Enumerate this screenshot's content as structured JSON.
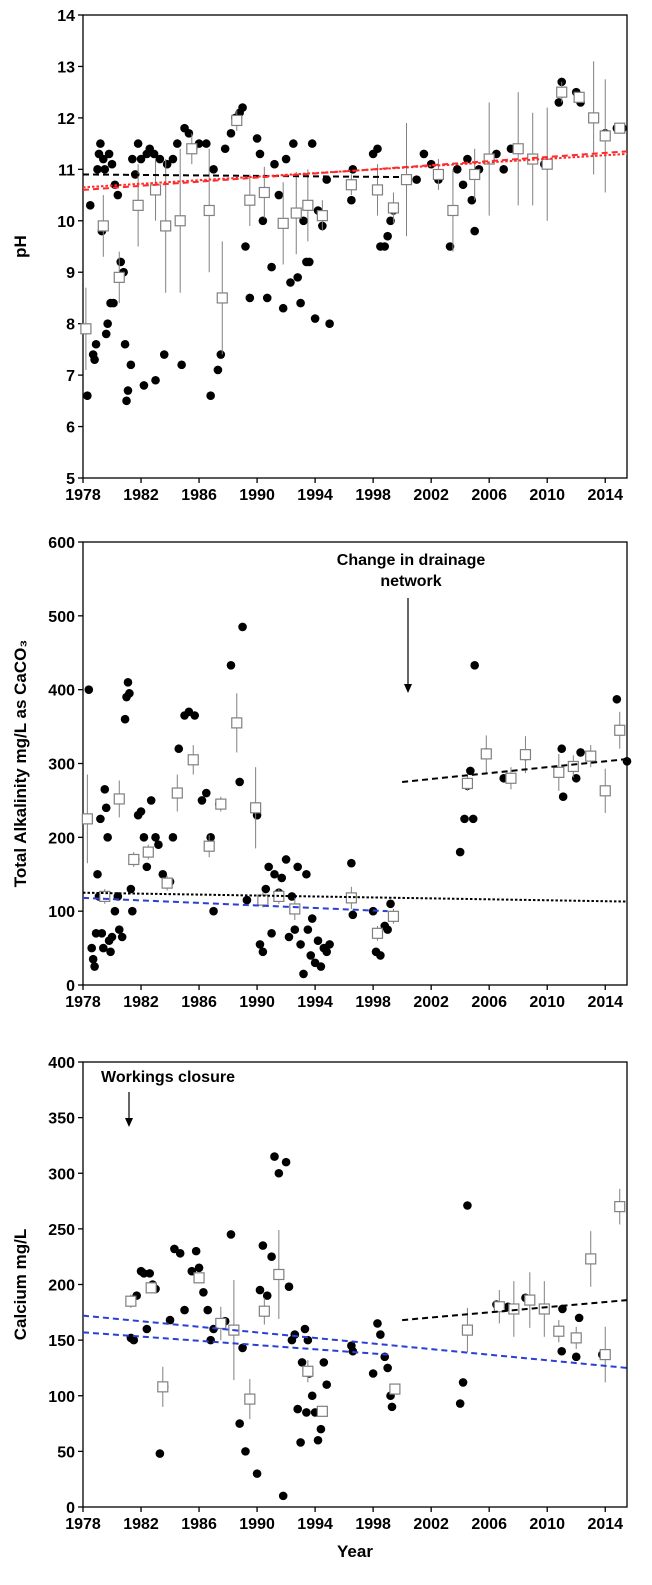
{
  "chart_data": [
    {
      "type": "scatter",
      "ylabel": "pH",
      "xlim": [
        1978,
        2015.5
      ],
      "xticks": [
        1978,
        1982,
        1986,
        1990,
        1994,
        1998,
        2002,
        2006,
        2010,
        2014
      ],
      "ylim": [
        5,
        14
      ],
      "yticks": [
        5,
        6,
        7,
        8,
        9,
        10,
        11,
        12,
        13,
        14
      ],
      "series": [
        {
          "marker": "circle",
          "color": "#000000",
          "x": [
            1978.3,
            1978.5,
            1978.7,
            1978.8,
            1978.9,
            1979.0,
            1979.1,
            1979.2,
            1979.3,
            1979.4,
            1979.5,
            1979.6,
            1979.7,
            1979.8,
            1979.9,
            1980.0,
            1980.1,
            1980.2,
            1980.4,
            1980.6,
            1980.8,
            1980.9,
            1981.0,
            1981.1,
            1981.3,
            1981.4,
            1981.6,
            1981.8,
            1982.0,
            1982.2,
            1982.4,
            1982.6,
            1982.9,
            1983.0,
            1983.3,
            1983.6,
            1983.8,
            1984.2,
            1984.5,
            1984.8,
            1985.0,
            1985.3,
            1985.6,
            1986.0,
            1986.5,
            1986.8,
            1987.0,
            1987.3,
            1987.5,
            1987.8,
            1988.2,
            1988.5,
            1988.8,
            1989.0,
            1989.2,
            1989.5,
            1990.0,
            1990.2,
            1990.4,
            1990.7,
            1991.0,
            1991.2,
            1991.5,
            1991.8,
            1992.0,
            1992.3,
            1992.5,
            1992.8,
            1993.0,
            1993.2,
            1993.4,
            1993.6,
            1993.8,
            1994.0,
            1994.2,
            1994.5,
            1994.8,
            1995.0,
            1996.5,
            1996.6,
            1998.0,
            1998.3,
            1998.5,
            1998.8,
            1999.0,
            1999.2,
            1999.4,
            2001.0,
            2001.5,
            2002.0,
            2002.5,
            2003.3,
            2003.8,
            2004.2,
            2004.5,
            2004.8,
            2005.0,
            2005.3,
            2006.0,
            2006.5,
            2007.0,
            2007.5,
            2009.0,
            2009.8,
            2010.8,
            2011.0,
            2012.0,
            2012.3,
            2013.2,
            2014.0,
            2014.8,
            2015.2
          ],
          "values": [
            6.6,
            10.3,
            7.4,
            7.3,
            7.6,
            11.0,
            11.3,
            11.5,
            9.8,
            11.2,
            11.0,
            7.8,
            8.0,
            11.3,
            8.4,
            11.1,
            8.4,
            10.7,
            10.5,
            9.2,
            9.0,
            7.6,
            6.5,
            6.7,
            7.2,
            11.2,
            10.9,
            11.5,
            11.2,
            6.8,
            11.3,
            11.4,
            11.3,
            6.9,
            11.2,
            7.4,
            11.1,
            11.2,
            11.5,
            7.2,
            11.8,
            11.7,
            11.4,
            11.5,
            11.5,
            6.6,
            11.0,
            7.1,
            7.4,
            11.4,
            11.7,
            12.0,
            12.1,
            12.2,
            9.5,
            8.5,
            11.6,
            11.3,
            10.0,
            8.5,
            9.1,
            11.1,
            10.5,
            8.3,
            11.2,
            8.8,
            11.5,
            8.9,
            8.4,
            10.0,
            9.2,
            9.2,
            11.5,
            8.1,
            10.2,
            9.9,
            10.8,
            8.0,
            10.4,
            11.0,
            11.3,
            11.4,
            9.5,
            9.5,
            9.7,
            10.0,
            10.2,
            10.8,
            11.3,
            11.1,
            10.8,
            9.5,
            11.0,
            10.7,
            11.2,
            10.4,
            9.8,
            11.0,
            11.2,
            11.3,
            11.0,
            11.4,
            11.2,
            11.1,
            12.3,
            12.7,
            12.5,
            12.3,
            12.0,
            11.7,
            11.8,
            11.8
          ]
        },
        {
          "marker": "square",
          "color": "#808080",
          "x": [
            1978.2,
            1979.4,
            1980.5,
            1981.8,
            1983.0,
            1983.7,
            1984.7,
            1985.5,
            1986.7,
            1987.6,
            1988.6,
            1989.5,
            1990.5,
            1991.8,
            1992.7,
            1993.5,
            1994.5,
            1996.5,
            1998.3,
            1999.4,
            2000.3,
            2002.5,
            2003.5,
            2005.0,
            2006.0,
            2008.0,
            2009.0,
            2010.0,
            2011.0,
            2012.2,
            2013.2,
            2014.0,
            2015.0
          ],
          "values": [
            7.9,
            9.9,
            8.9,
            10.3,
            10.6,
            9.9,
            10.0,
            11.4,
            10.2,
            8.5,
            11.95,
            10.4,
            10.55,
            9.95,
            10.15,
            10.3,
            10.1,
            10.7,
            10.6,
            10.25,
            10.8,
            10.9,
            10.2,
            10.9,
            11.2,
            11.4,
            11.2,
            11.1,
            12.5,
            12.4,
            12.0,
            11.65,
            11.8
          ],
          "errors": [
            0.8,
            0.6,
            0.5,
            0.8,
            0.6,
            1.3,
            1.4,
            0.3,
            1.2,
            1.1,
            0.2,
            0.5,
            0.5,
            0.8,
            0.8,
            0.7,
            0.3,
            0.2,
            0.5,
            0.3,
            1.1,
            0.3,
            0.8,
            0.5,
            1.1,
            1.1,
            0.9,
            1.1,
            0.2,
            0.1,
            1.1,
            1.1,
            0.1
          ]
        },
        {
          "marker": "line",
          "dash": "dashed",
          "color": "#000000",
          "x": [
            1978,
            2000
          ],
          "values": [
            10.9,
            10.85
          ]
        },
        {
          "marker": "line",
          "dash": "dashed",
          "color": "#ff2a2a",
          "x": [
            1978,
            2015.5
          ],
          "values": [
            10.6,
            11.35
          ]
        },
        {
          "marker": "line",
          "dash": "dotted",
          "color": "#ff2a2a",
          "x": [
            1978,
            2015.5
          ],
          "values": [
            10.65,
            11.3
          ]
        }
      ]
    },
    {
      "type": "scatter",
      "ylabel": "Total Alkalinity mg/L as CaCO₃",
      "xlim": [
        1978,
        2015.5
      ],
      "xticks": [
        1978,
        1982,
        1986,
        1990,
        1994,
        1998,
        2002,
        2006,
        2010,
        2014
      ],
      "ylim": [
        0,
        600
      ],
      "yticks": [
        0,
        100,
        200,
        300,
        400,
        500,
        600
      ],
      "annotation": [
        "Change in drainage",
        "network"
      ],
      "series": [
        {
          "marker": "circle",
          "color": "#000000",
          "x": [
            1978.4,
            1978.6,
            1978.7,
            1978.8,
            1978.9,
            1979.0,
            1979.1,
            1979.2,
            1979.3,
            1979.4,
            1979.5,
            1979.6,
            1979.7,
            1979.8,
            1979.9,
            1980.0,
            1980.2,
            1980.4,
            1980.5,
            1980.7,
            1980.9,
            1981.0,
            1981.1,
            1981.2,
            1981.3,
            1981.4,
            1981.6,
            1981.8,
            1982.0,
            1982.2,
            1982.4,
            1982.7,
            1983.0,
            1983.2,
            1983.5,
            1984.0,
            1984.2,
            1984.6,
            1985.0,
            1985.3,
            1985.7,
            1986.2,
            1986.5,
            1986.8,
            1987.0,
            1987.4,
            1988.2,
            1988.8,
            1989.0,
            1989.3,
            1990.0,
            1990.2,
            1990.4,
            1990.6,
            1990.8,
            1991.0,
            1991.2,
            1991.5,
            1991.7,
            1992.0,
            1992.2,
            1992.4,
            1992.6,
            1992.8,
            1993.0,
            1993.2,
            1993.4,
            1993.5,
            1993.7,
            1993.8,
            1994.0,
            1994.2,
            1994.4,
            1994.6,
            1994.8,
            1995.0,
            1996.5,
            1996.6,
            1998.0,
            1998.2,
            1998.5,
            1998.8,
            1999.0,
            1999.2,
            2004.0,
            2004.3,
            2004.5,
            2004.7,
            2004.9,
            2005.0,
            2005.8,
            2007.0,
            2008.5,
            2011.0,
            2011.1,
            2012.0,
            2012.3,
            2013.0,
            2014.0,
            2014.8,
            2015.5
          ],
          "values": [
            400,
            50,
            35,
            25,
            70,
            150,
            120,
            225,
            70,
            50,
            265,
            240,
            200,
            60,
            45,
            65,
            100,
            120,
            75,
            65,
            360,
            390,
            410,
            395,
            130,
            100,
            170,
            230,
            235,
            200,
            160,
            250,
            200,
            190,
            150,
            140,
            200,
            320,
            365,
            370,
            365,
            250,
            260,
            200,
            100,
            245,
            433,
            275,
            485,
            115,
            230,
            55,
            45,
            130,
            160,
            70,
            150,
            125,
            145,
            170,
            65,
            120,
            75,
            160,
            55,
            15,
            150,
            75,
            40,
            90,
            30,
            60,
            25,
            50,
            45,
            55,
            165,
            95,
            100,
            45,
            40,
            80,
            75,
            110,
            180,
            225,
            270,
            290,
            225,
            433,
            315,
            280,
            310,
            320,
            255,
            280,
            315,
            310,
            262,
            387,
            303
          ]
        },
        {
          "marker": "square",
          "color": "#808080",
          "x": [
            1978.3,
            1979.5,
            1980.5,
            1981.5,
            1982.5,
            1983.8,
            1984.5,
            1985.6,
            1986.7,
            1987.5,
            1988.6,
            1989.9,
            1990.4,
            1991.5,
            1992.6,
            1996.5,
            1998.3,
            1999.4,
            2004.5,
            2005.8,
            2007.5,
            2008.5,
            2010.8,
            2011.8,
            2013.0,
            2014.0,
            2015.0
          ],
          "values": [
            225,
            120,
            252,
            170,
            180,
            138,
            260,
            305,
            188,
            245,
            355,
            240,
            115,
            120,
            103,
            118,
            70,
            93,
            273,
            313,
            280,
            312,
            288,
            296,
            310,
            263,
            345
          ],
          "errors": [
            60,
            10,
            25,
            10,
            10,
            10,
            25,
            20,
            15,
            10,
            40,
            55,
            10,
            10,
            15,
            15,
            10,
            10,
            10,
            25,
            15,
            25,
            25,
            15,
            15,
            30,
            25
          ]
        },
        {
          "marker": "line",
          "dash": "dashed",
          "color": "#000000",
          "x": [
            2000,
            2015.5
          ],
          "values": [
            275,
            306
          ]
        },
        {
          "marker": "line",
          "dash": "dotted",
          "color": "#000000",
          "x": [
            1978,
            2015.5
          ],
          "values": [
            125,
            113
          ]
        },
        {
          "marker": "line",
          "dash": "dashed",
          "color": "#2a3fd6",
          "x": [
            1978,
            1999
          ],
          "values": [
            118,
            100
          ]
        }
      ]
    },
    {
      "type": "scatter",
      "ylabel": "Calcium mg/L",
      "xlabel": "Year",
      "xlim": [
        1978,
        2015.5
      ],
      "xticks": [
        1978,
        1982,
        1986,
        1990,
        1994,
        1998,
        2002,
        2006,
        2010,
        2014
      ],
      "ylim": [
        0,
        400
      ],
      "yticks": [
        0,
        50,
        100,
        150,
        200,
        250,
        300,
        350,
        400
      ],
      "annotation": [
        "Workings closure"
      ],
      "series": [
        {
          "marker": "circle",
          "color": "#000000",
          "x": [
            1981.3,
            1981.5,
            1981.7,
            1982.0,
            1982.2,
            1982.4,
            1982.6,
            1982.8,
            1983.0,
            1983.3,
            1983.6,
            1984.0,
            1984.3,
            1984.7,
            1985.0,
            1985.5,
            1985.8,
            1986.0,
            1986.3,
            1986.6,
            1986.8,
            1987.0,
            1987.8,
            1988.2,
            1988.8,
            1989.0,
            1989.2,
            1990.0,
            1990.2,
            1990.4,
            1990.7,
            1991.0,
            1991.2,
            1991.5,
            1991.8,
            1992.0,
            1992.2,
            1992.4,
            1992.6,
            1992.8,
            1993.0,
            1993.1,
            1993.3,
            1993.4,
            1993.5,
            1993.6,
            1993.8,
            1994.0,
            1994.2,
            1994.4,
            1994.6,
            1994.8,
            1996.5,
            1996.6,
            1998.0,
            1998.3,
            1998.5,
            1998.8,
            1999.0,
            1999.2,
            1999.3,
            2004.0,
            2004.2,
            2004.5,
            2006.5,
            2007.3,
            2008.5,
            2011.0,
            2011.05,
            2012.0,
            2012.2,
            2013.0,
            2013.8,
            2015.0
          ],
          "values": [
            152,
            150,
            190,
            212,
            210,
            160,
            210,
            200,
            196,
            48,
            108,
            168,
            232,
            228,
            177,
            212,
            230,
            215,
            193,
            177,
            150,
            160,
            167,
            245,
            75,
            143,
            50,
            30,
            195,
            235,
            190,
            225,
            315,
            300,
            10,
            310,
            198,
            150,
            155,
            88,
            58,
            130,
            160,
            85,
            150,
            120,
            100,
            85,
            60,
            70,
            130,
            110,
            145,
            140,
            120,
            165,
            155,
            135,
            125,
            100,
            90,
            93,
            112,
            271,
            182,
            180,
            188,
            140,
            178,
            135,
            170,
            222,
            137,
            270
          ]
        },
        {
          "marker": "square",
          "color": "#808080",
          "x": [
            1981.3,
            1982.7,
            1983.5,
            1986.0,
            1987.5,
            1988.4,
            1989.5,
            1990.5,
            1991.5,
            1993.5,
            1994.5,
            1999.5,
            2004.5,
            2006.7,
            2007.7,
            2008.8,
            2009.8,
            2010.8,
            2012.0,
            2013.0,
            2014.0,
            2015.0
          ],
          "values": [
            185,
            197,
            108,
            206,
            165,
            159,
            97,
            176,
            209,
            122,
            86,
            106,
            159,
            180,
            178,
            186,
            178,
            158,
            152,
            223,
            137,
            270
          ],
          "errors": [
            6,
            5,
            18,
            5,
            15,
            45,
            18,
            12,
            40,
            10,
            5,
            4,
            20,
            15,
            25,
            25,
            25,
            10,
            10,
            25,
            25,
            16
          ]
        },
        {
          "marker": "line",
          "dash": "dashed",
          "color": "#000000",
          "x": [
            2000,
            2015.5
          ],
          "values": [
            168,
            186
          ]
        },
        {
          "marker": "line",
          "dash": "dashed",
          "color": "#2a3fd6",
          "x": [
            1978,
            2015.5
          ],
          "values": [
            172,
            125
          ]
        },
        {
          "marker": "line",
          "dash": "dashed",
          "color": "#2a3fd6",
          "x": [
            1978,
            1999
          ],
          "values": [
            157,
            137
          ]
        }
      ]
    }
  ]
}
